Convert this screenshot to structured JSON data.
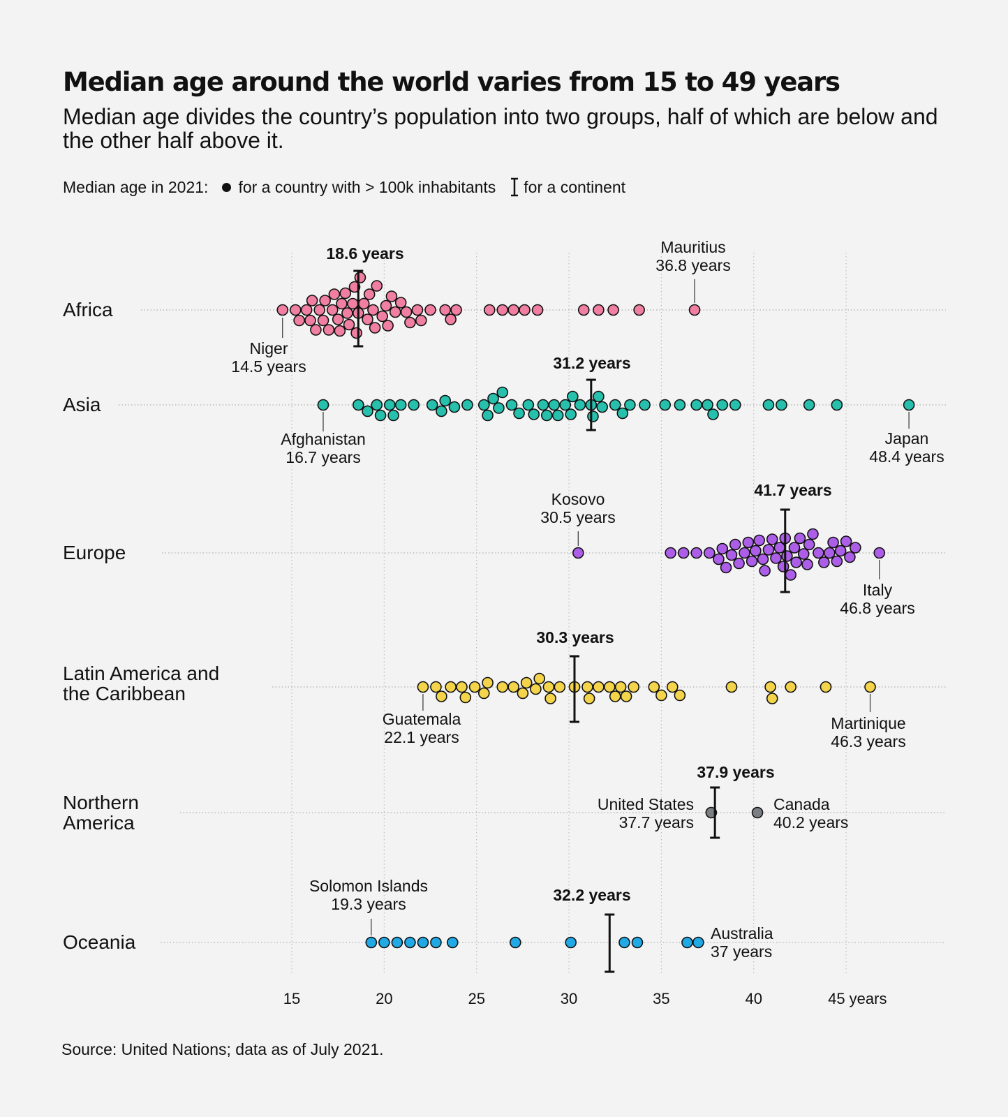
{
  "title": "Median age around the world varies from 15 to 49 years",
  "subtitle": "Median age divides the country’s population into two groups, half of which are below and the other half above it.",
  "legend": {
    "prefix": "Median age in 2021:",
    "country_item": "for a country with > 100k inhabitants",
    "continent_item": "for a continent"
  },
  "source": "Source: United Nations; data as of July 2021.",
  "chart_data": {
    "type": "scatter",
    "subtype": "beeswarm",
    "x_axis": {
      "ticks": [
        15,
        20,
        25,
        30,
        35,
        40,
        45
      ],
      "tick_labels": [
        "15",
        "20",
        "25",
        "30",
        "35",
        "40",
        "45 years"
      ],
      "range": [
        14,
        49
      ],
      "grid": "vertical dotted"
    },
    "series": [
      {
        "name": "Africa",
        "color": "#f07fa1",
        "median": 18.6,
        "median_label": "18.6 years",
        "values": [
          14.5,
          15.2,
          15.4,
          15.8,
          16.0,
          16.1,
          16.3,
          16.5,
          16.7,
          16.8,
          17.0,
          17.2,
          17.3,
          17.5,
          17.6,
          17.7,
          17.9,
          18.0,
          18.1,
          18.3,
          18.4,
          18.5,
          18.6,
          18.7,
          18.9,
          19.1,
          19.2,
          19.4,
          19.5,
          19.6,
          19.9,
          20.1,
          20.2,
          20.4,
          20.6,
          20.9,
          21.2,
          21.4,
          21.8,
          22.0,
          22.5,
          23.3,
          23.6,
          23.9,
          25.7,
          26.4,
          27.0,
          27.6,
          28.3,
          30.8,
          31.6,
          32.4,
          33.8,
          36.8
        ],
        "annotations": [
          {
            "country": "Niger",
            "value_label": "14.5 years"
          },
          {
            "country": "Mauritius",
            "value_label": "36.8 years"
          }
        ]
      },
      {
        "name": "Asia",
        "color": "#27c0ad",
        "median": 31.2,
        "median_label": "31.2 years",
        "values": [
          16.7,
          18.6,
          19.1,
          19.6,
          19.8,
          20.3,
          20.5,
          20.9,
          21.6,
          22.6,
          23.1,
          23.3,
          23.8,
          24.5,
          25.4,
          25.6,
          25.9,
          26.2,
          26.4,
          26.9,
          27.3,
          27.8,
          28.1,
          28.6,
          28.8,
          29.2,
          29.4,
          29.8,
          30.1,
          30.2,
          30.6,
          31.2,
          31.3,
          31.6,
          31.8,
          32.5,
          32.9,
          33.3,
          34.1,
          35.2,
          36.0,
          36.9,
          37.5,
          37.8,
          38.3,
          39.0,
          40.8,
          41.5,
          43.0,
          44.5,
          48.4
        ],
        "annotations": [
          {
            "country": "Afghanistan",
            "value_label": "16.7 years"
          },
          {
            "country": "Japan",
            "value_label": "48.4 years"
          }
        ]
      },
      {
        "name": "Europe",
        "color": "#ad5ee8",
        "median": 41.7,
        "median_label": "41.7 years",
        "values": [
          30.5,
          35.5,
          36.2,
          36.9,
          37.6,
          38.1,
          38.3,
          38.5,
          38.8,
          39.0,
          39.2,
          39.5,
          39.7,
          39.9,
          40.1,
          40.3,
          40.5,
          40.6,
          40.8,
          41.0,
          41.2,
          41.4,
          41.6,
          41.7,
          41.8,
          42.0,
          42.2,
          42.3,
          42.5,
          42.7,
          42.9,
          43.0,
          43.2,
          43.5,
          43.8,
          44.1,
          44.3,
          44.5,
          44.7,
          45.0,
          45.2,
          45.5,
          46.8
        ],
        "annotations": [
          {
            "country": "Kosovo",
            "value_label": "30.5 years"
          },
          {
            "country": "Italy",
            "value_label": "46.8 years"
          }
        ]
      },
      {
        "name": "Latin America and the Caribbean",
        "color": "#f4d44a",
        "median": 30.3,
        "median_label": "30.3 years",
        "values": [
          22.1,
          22.8,
          23.1,
          23.6,
          24.2,
          24.4,
          24.9,
          25.4,
          25.6,
          26.4,
          27.0,
          27.5,
          27.7,
          28.2,
          28.4,
          28.9,
          29.0,
          29.5,
          30.3,
          31.0,
          31.1,
          31.6,
          32.2,
          32.5,
          32.8,
          33.1,
          33.5,
          34.6,
          35.0,
          35.6,
          36.0,
          38.8,
          40.9,
          41.0,
          42.0,
          43.9,
          46.3
        ],
        "annotations": [
          {
            "country": "Guatemala",
            "value_label": "22.1 years"
          },
          {
            "country": "Martinique",
            "value_label": "46.3 years"
          }
        ]
      },
      {
        "name": "Northern America",
        "color": "#7b7e82",
        "median": 37.9,
        "median_label": "37.9 years",
        "values": [
          37.7,
          40.2
        ],
        "annotations": [
          {
            "country": "United States",
            "value_label": "37.7 years"
          },
          {
            "country": "Canada",
            "value_label": "40.2 years"
          }
        ]
      },
      {
        "name": "Oceania",
        "color": "#21a9e6",
        "median": 32.2,
        "median_label": "32.2 years",
        "values": [
          19.3,
          20.0,
          20.7,
          21.4,
          22.1,
          22.8,
          23.7,
          27.1,
          30.1,
          33.0,
          33.7,
          36.4,
          37.0
        ],
        "annotations": [
          {
            "country": "Solomon Islands",
            "value_label": "19.3 years"
          },
          {
            "country": "Australia",
            "value_label": "37 years"
          }
        ]
      }
    ]
  }
}
